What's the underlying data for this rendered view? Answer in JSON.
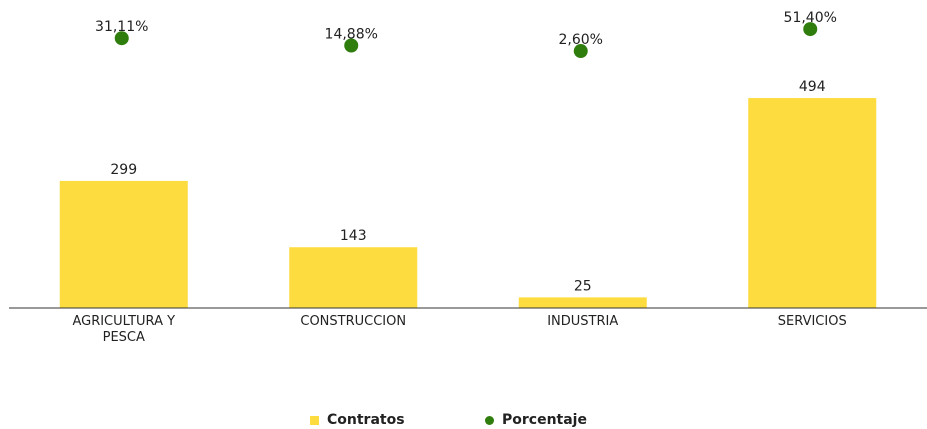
{
  "chart_data": {
    "type": "bar",
    "categories": [
      "AGRICULTURA Y PESCA",
      "CONSTRUCCION",
      "INDUSTRIA",
      "SERVICIOS"
    ],
    "series": [
      {
        "name": "Contratos",
        "type": "bar",
        "color": "#fddc3f",
        "values": [
          299,
          143,
          25,
          494
        ]
      },
      {
        "name": "Porcentaje",
        "type": "scatter",
        "axis": "y2",
        "color": "#2f7d0c",
        "values": [
          31.11,
          14.88,
          2.6,
          51.4
        ],
        "value_labels": [
          "31,11%",
          "14,88%",
          "2,60%",
          "51,40%"
        ]
      }
    ],
    "ylim": [
      0,
      500
    ],
    "y2lim": [
      0,
      100
    ]
  }
}
